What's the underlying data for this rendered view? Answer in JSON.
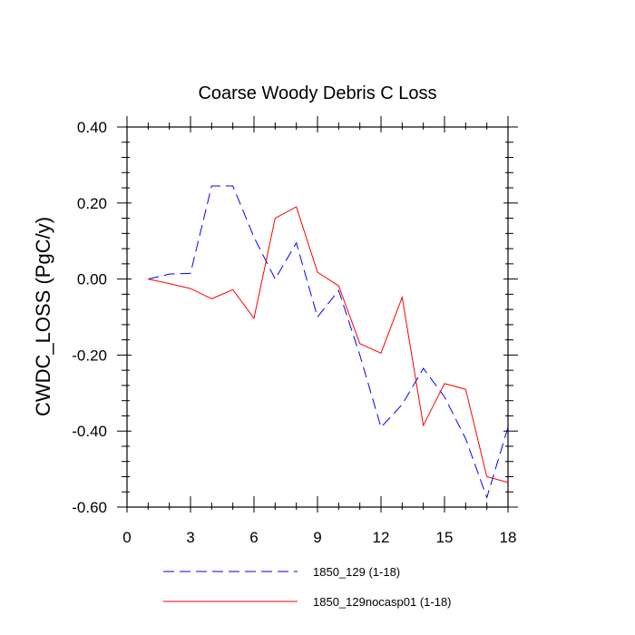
{
  "chart_data": {
    "type": "line",
    "title": "Coarse Woody Debris C Loss",
    "xlabel": "",
    "ylabel": "CWDC_LOSS  (PgC/y)",
    "xlim": [
      0,
      18
    ],
    "ylim": [
      -0.6,
      0.4
    ],
    "x_ticks": [
      0,
      3,
      6,
      9,
      12,
      15,
      18
    ],
    "x_tick_labels": [
      "0",
      "3",
      "6",
      "9",
      "12",
      "15",
      "18"
    ],
    "y_ticks": [
      -0.6,
      -0.4,
      -0.2,
      0.0,
      0.2,
      0.4
    ],
    "y_tick_labels": [
      "-0.60",
      "-0.40",
      "-0.20",
      "0.00",
      "0.20",
      "0.40"
    ],
    "grid": false,
    "legend_position": "bottom",
    "x": [
      1,
      2,
      3,
      4,
      5,
      6,
      7,
      8,
      9,
      10,
      11,
      12,
      13,
      14,
      15,
      16,
      17,
      18
    ],
    "series": [
      {
        "name": "1850_129 (1-18)",
        "color": "#0000ff",
        "dash": "dashed",
        "values": [
          0.0,
          0.013,
          0.015,
          0.245,
          0.245,
          0.11,
          0.0,
          0.095,
          -0.1,
          -0.03,
          -0.2,
          -0.39,
          -0.33,
          -0.235,
          -0.31,
          -0.42,
          -0.575,
          -0.39
        ]
      },
      {
        "name": "1850_129nocasp01 (1-18)",
        "color": "#ff0000",
        "dash": "solid",
        "values": [
          0.0,
          -0.012,
          -0.025,
          -0.052,
          -0.028,
          -0.103,
          0.16,
          0.19,
          0.018,
          -0.018,
          -0.17,
          -0.195,
          -0.048,
          -0.385,
          -0.275,
          -0.29,
          -0.52,
          -0.535
        ]
      }
    ]
  }
}
